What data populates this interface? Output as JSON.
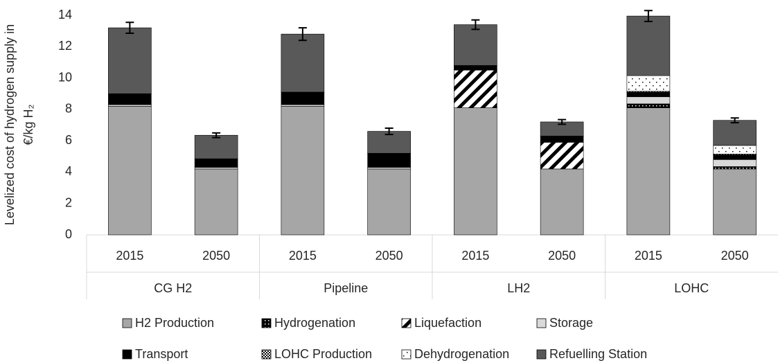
{
  "chart_data": {
    "type": "stacked_bar",
    "ylabel": [
      "Levelized cost of hydrogen supply in",
      "€/kg H₂"
    ],
    "categories": [
      "2015",
      "2050",
      "2015",
      "2050",
      "2015",
      "2050",
      "2015",
      "2050"
    ],
    "groups": [
      "CG H2",
      "Pipeline",
      "LH2",
      "LOHC"
    ],
    "series": [
      {
        "name": "H2 Production",
        "color": "#a6a6a6",
        "pattern": "solid",
        "values": [
          8.2,
          4.2,
          8.2,
          4.2,
          8.1,
          4.2,
          8.1,
          4.2
        ]
      },
      {
        "name": "Hydrogenation",
        "color": "#000000",
        "pattern": "dots",
        "values": [
          0,
          0,
          0,
          0,
          0,
          0,
          0.25,
          0.15
        ]
      },
      {
        "name": "Liquefaction",
        "color": "#000000",
        "pattern": "diagonal",
        "values": [
          0,
          0,
          0,
          0,
          2.4,
          1.7,
          0,
          0
        ]
      },
      {
        "name": "Storage",
        "color": "#d9d9d9",
        "pattern": "solid",
        "values": [
          0.1,
          0.1,
          0.1,
          0.1,
          0,
          0,
          0.45,
          0.45
        ]
      },
      {
        "name": "Transport",
        "color": "#000000",
        "pattern": "solid",
        "values": [
          0.7,
          0.55,
          0.8,
          0.9,
          0.3,
          0.4,
          0.3,
          0.3
        ]
      },
      {
        "name": "LOHC Production",
        "color": "#000000",
        "pattern": "checker",
        "values": [
          0,
          0,
          0,
          0,
          0,
          0,
          0.05,
          0.05
        ]
      },
      {
        "name": "Dehydrogenation",
        "color": "#000000",
        "pattern": "sparse",
        "values": [
          0,
          0,
          0,
          0,
          0,
          0,
          1.0,
          0.55
        ]
      },
      {
        "name": "Refuelling Station",
        "color": "#595959",
        "pattern": "solid",
        "values": [
          4.2,
          1.5,
          3.7,
          1.4,
          2.6,
          0.9,
          3.8,
          1.6
        ]
      }
    ],
    "errors": [
      0.35,
      0.15,
      0.4,
      0.2,
      0.3,
      0.15,
      0.35,
      0.15
    ],
    "ylim": [
      0,
      14
    ],
    "yticks": [
      0,
      2,
      4,
      6,
      8,
      10,
      12,
      14
    ],
    "grid": false
  }
}
